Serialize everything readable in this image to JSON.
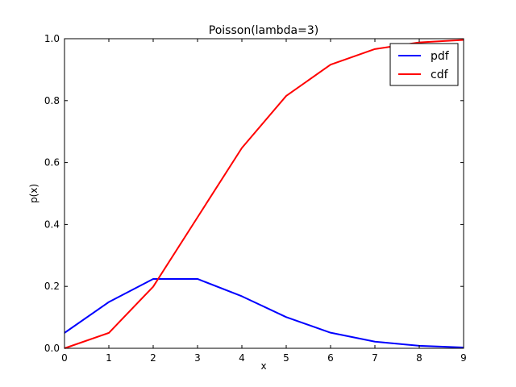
{
  "chart_data": {
    "type": "line",
    "title": "Poisson(lambda=3)",
    "xlabel": "x",
    "ylabel": "p(x)",
    "xlim": [
      0,
      9
    ],
    "ylim": [
      0,
      1.0
    ],
    "xticks": [
      0,
      1,
      2,
      3,
      4,
      5,
      6,
      7,
      8,
      9
    ],
    "yticks": [
      0.0,
      0.2,
      0.4,
      0.6,
      0.8,
      1.0
    ],
    "grid": false,
    "legend_position": "top-right",
    "x": [
      0,
      1,
      2,
      3,
      4,
      5,
      6,
      7,
      8,
      9
    ],
    "series": [
      {
        "name": "pdf",
        "color": "#0000ff",
        "values": [
          0.0498,
          0.1494,
          0.224,
          0.224,
          0.168,
          0.1008,
          0.0504,
          0.0216,
          0.0081,
          0.0027
        ]
      },
      {
        "name": "cdf",
        "color": "#ff0000",
        "values": [
          0.0,
          0.0498,
          0.1991,
          0.4232,
          0.6472,
          0.8153,
          0.9161,
          0.9665,
          0.9881,
          0.9962
        ]
      }
    ]
  }
}
